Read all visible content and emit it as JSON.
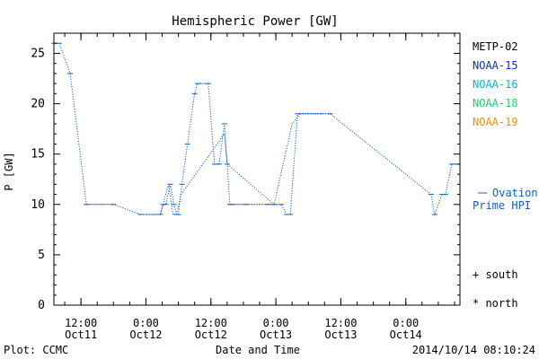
{
  "chart_data": {
    "type": "line",
    "title": "Hemispheric Power [GW]",
    "ylabel": "P [GW]",
    "xlabel": "Date and Time",
    "ylim": [
      0,
      27
    ],
    "yticks": [
      0,
      5,
      10,
      15,
      20,
      25
    ],
    "x_range": [
      "2014-10-11 07:00",
      "2014-10-14 10:00"
    ],
    "xticks": [
      {
        "x": "2014-10-11 12:00",
        "time": "12:00",
        "date": "Oct11"
      },
      {
        "x": "2014-10-12 00:00",
        "time": "0:00",
        "date": "Oct12"
      },
      {
        "x": "2014-10-12 12:00",
        "time": "12:00",
        "date": "Oct12"
      },
      {
        "x": "2014-10-13 00:00",
        "time": "0:00",
        "date": "Oct13"
      },
      {
        "x": "2014-10-13 12:00",
        "time": "12:00",
        "date": "Oct13"
      },
      {
        "x": "2014-10-14 00:00",
        "time": "0:00",
        "date": "Oct14"
      }
    ],
    "legend": [
      "METP-02",
      "NOAA-15",
      "NOAA-16",
      "NOAA-18",
      "NOAA-19"
    ],
    "legend_colors": [
      "#000000",
      "#1030c0",
      "#00b8d8",
      "#20d070",
      "#f09010"
    ],
    "legend_position": "right",
    "series": [
      {
        "name": "Ovation Prime HPI",
        "color": "#1060c0",
        "x": [
          "2014-10-11 07:00",
          "2014-10-11 08:00",
          "2014-10-11 10:00",
          "2014-10-11 13:00",
          "2014-10-11 18:00",
          "2014-10-11 23:00",
          "2014-10-12 01:40",
          "2014-10-12 02:40",
          "2014-10-12 03:10",
          "2014-10-12 03:40",
          "2014-10-12 04:30",
          "2014-10-12 05:10",
          "2014-10-12 05:40",
          "2014-10-12 06:00",
          "2014-10-12 06:40",
          "2014-10-12 07:40",
          "2014-10-12 09:00",
          "2014-10-12 09:30",
          "2014-10-12 11:30",
          "2014-10-12 12:40",
          "2014-10-12 13:30",
          "2014-10-12 14:30",
          "2014-10-12 15:00",
          "2014-10-12 15:30",
          "2014-10-12 16:00",
          "2014-10-12 18:30",
          "2014-10-12 22:30",
          "2014-10-12 23:40",
          "2014-10-13 01:00",
          "2014-10-13 02:00",
          "2014-10-13 02:40",
          "2014-10-13 04:00",
          "2014-10-13 10:00",
          "2014-10-14 04:40",
          "2014-10-14 05:20",
          "2014-10-14 06:40",
          "2014-10-14 07:20",
          "2014-10-14 08:30",
          "2014-10-14 09:30"
        ],
        "y": [
          26,
          26,
          23,
          10,
          10,
          9,
          9,
          9,
          10,
          10,
          12,
          10,
          9,
          9,
          12,
          16,
          21,
          22,
          22,
          14,
          14,
          18,
          14,
          10,
          10,
          10,
          10,
          10,
          10,
          9,
          9,
          19,
          19,
          11,
          9,
          11,
          11,
          14,
          14
        ]
      },
      {
        "name": "Ovation Prime HPI",
        "color": "#1060c0",
        "x": [
          "2014-10-11 23:00",
          "2014-10-12 02:40",
          "2014-10-12 04:10",
          "2014-10-12 05:00",
          "2014-10-12 05:40",
          "2014-10-12 06:30",
          "2014-10-12 14:30",
          "2014-10-12 15:00",
          "2014-10-12 23:40",
          "2014-10-13 03:00",
          "2014-10-13 04:30",
          "2014-10-13 09:00"
        ],
        "y": [
          9,
          9,
          12,
          9,
          9,
          11,
          17,
          14,
          10,
          18,
          19,
          19
        ]
      }
    ],
    "markers_legend": [
      "+ south",
      "* north"
    ],
    "footer_left": "Plot: CCMC",
    "footer_right": "2014/10/14 08:10:24"
  }
}
